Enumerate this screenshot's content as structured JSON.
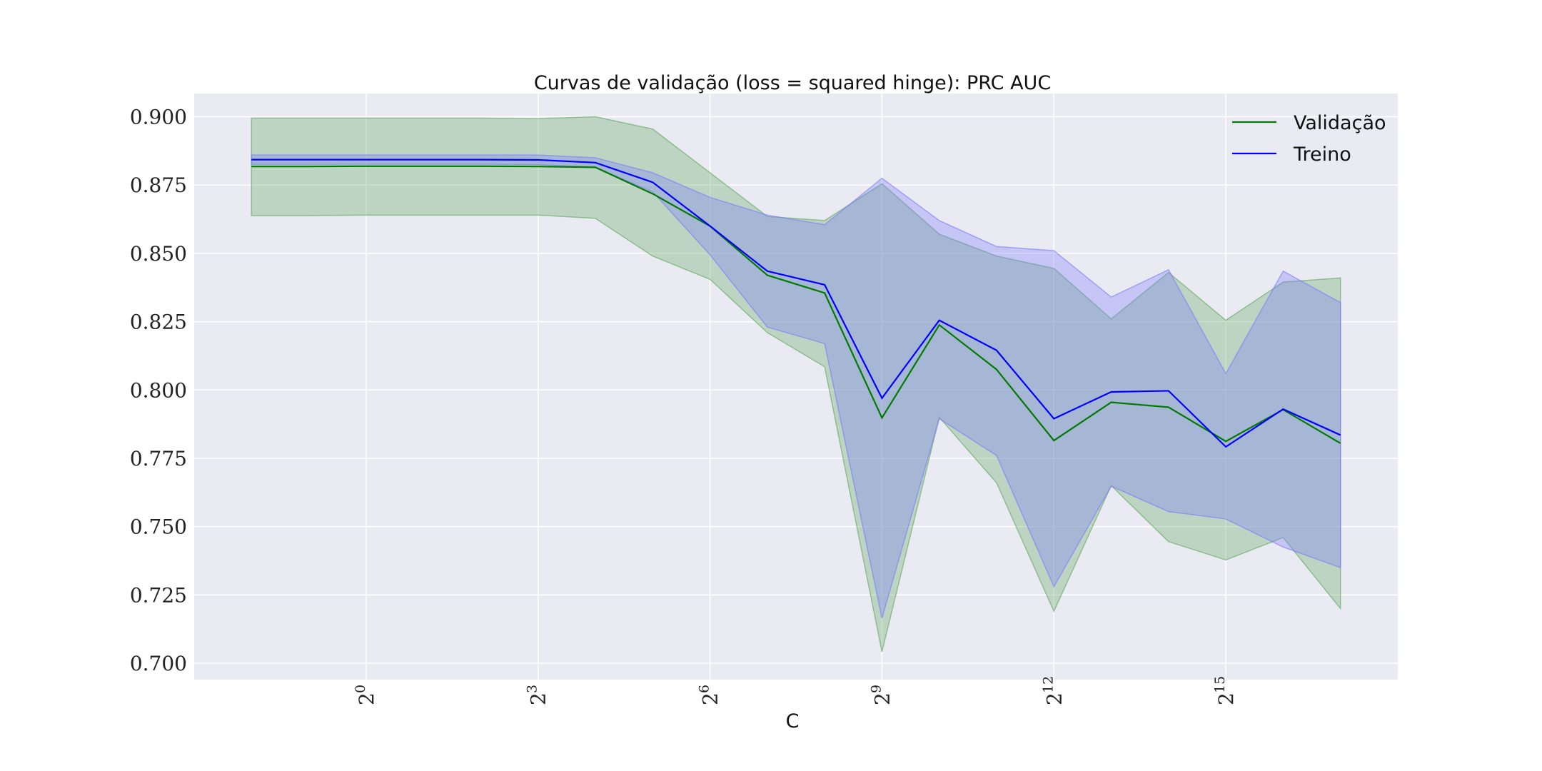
{
  "chart_data": {
    "type": "line",
    "title": "Curvas de validação (loss = squared hinge): PRC AUC",
    "xlabel": "C",
    "ylabel": "",
    "x_scale": "log2",
    "x": [
      -2,
      -1,
      0,
      1,
      2,
      3,
      4,
      5,
      6,
      7,
      8,
      9,
      10,
      11,
      12,
      13,
      14,
      15,
      16,
      17
    ],
    "xlim": [
      -3,
      18
    ],
    "ylim": [
      0.694,
      0.9085
    ],
    "xticks": [
      {
        "value": 0,
        "base": "2",
        "exp": "0"
      },
      {
        "value": 3,
        "base": "2",
        "exp": "3"
      },
      {
        "value": 6,
        "base": "2",
        "exp": "6"
      },
      {
        "value": 9,
        "base": "2",
        "exp": "9"
      },
      {
        "value": 12,
        "base": "2",
        "exp": "12"
      },
      {
        "value": 15,
        "base": "2",
        "exp": "15"
      }
    ],
    "yticks": [
      "0.700",
      "0.725",
      "0.750",
      "0.775",
      "0.800",
      "0.825",
      "0.850",
      "0.875",
      "0.900"
    ],
    "ytick_values": [
      0.7,
      0.725,
      0.75,
      0.775,
      0.8,
      0.825,
      0.85,
      0.875,
      0.9
    ],
    "grid": true,
    "legend_position": "top-right",
    "series": [
      {
        "name": "Validação",
        "color": "#007a00",
        "band_color": "#5fa85f",
        "values": [
          0.8818,
          0.8818,
          0.8819,
          0.8819,
          0.8819,
          0.8818,
          0.8815,
          0.8718,
          0.86,
          0.842,
          0.8355,
          0.7898,
          0.8238,
          0.8075,
          0.7815,
          0.7955,
          0.7937,
          0.7812,
          0.7928,
          0.7805
        ],
        "upper": [
          0.8995,
          0.8995,
          0.8995,
          0.8995,
          0.8995,
          0.8993,
          0.9,
          0.8955,
          0.8795,
          0.8635,
          0.862,
          0.8755,
          0.857,
          0.849,
          0.8445,
          0.826,
          0.843,
          0.8255,
          0.8395,
          0.841
        ],
        "lower": [
          0.8638,
          0.8638,
          0.864,
          0.864,
          0.864,
          0.864,
          0.8628,
          0.849,
          0.8405,
          0.821,
          0.8085,
          0.7042,
          0.79,
          0.766,
          0.719,
          0.765,
          0.7445,
          0.7378,
          0.746,
          0.72
        ]
      },
      {
        "name": "Treino",
        "color": "#0000ff",
        "band_color": "#7a7aff",
        "values": [
          0.8843,
          0.8843,
          0.8843,
          0.8843,
          0.8843,
          0.8842,
          0.8832,
          0.876,
          0.86,
          0.8435,
          0.8385,
          0.797,
          0.8255,
          0.8145,
          0.7895,
          0.7993,
          0.7997,
          0.7792,
          0.793,
          0.7835
        ],
        "upper": [
          0.886,
          0.886,
          0.886,
          0.886,
          0.886,
          0.886,
          0.885,
          0.8795,
          0.8705,
          0.864,
          0.8605,
          0.8775,
          0.862,
          0.8525,
          0.851,
          0.834,
          0.844,
          0.806,
          0.8435,
          0.832
        ],
        "lower": [
          0.8826,
          0.8826,
          0.8826,
          0.8826,
          0.8826,
          0.8825,
          0.8815,
          0.8725,
          0.8495,
          0.823,
          0.817,
          0.7165,
          0.7895,
          0.776,
          0.728,
          0.7648,
          0.7555,
          0.7528,
          0.7425,
          0.735
        ]
      }
    ]
  },
  "colors": {
    "plot_background": "#eaeaf2",
    "grid": "#ffffff"
  }
}
